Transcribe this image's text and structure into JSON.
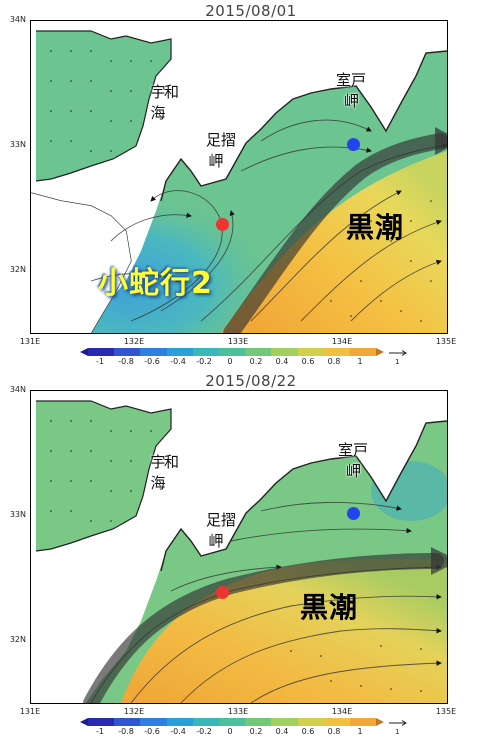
{
  "panels": [
    {
      "title": "2015/08/01",
      "current_label": "黒潮",
      "meander_label": "小蛇行2"
    },
    {
      "title": "2015/08/22",
      "current_label": "黒潮",
      "meander_label": ""
    }
  ],
  "places": {
    "uwa_sea": [
      "宇",
      "和",
      "海"
    ],
    "cape_ashizuri": [
      "足",
      "摺",
      "岬"
    ],
    "cape_muroto": [
      "室",
      "戸",
      "岬"
    ]
  },
  "axes": {
    "lon_ticks": [
      "131E",
      "132E",
      "133E",
      "134E",
      "135E"
    ],
    "lat_ticks": [
      "34N",
      "33N",
      "32N"
    ],
    "lon_range": [
      131,
      135
    ],
    "lat_range": [
      31.5,
      34
    ]
  },
  "colorbar": {
    "labels": [
      "-1",
      "-0.8",
      "-0.6",
      "-0.4",
      "-0.2",
      "0",
      "0.2",
      "0.4",
      "0.6",
      "0.8",
      "1"
    ],
    "colors": [
      "#2a2ab0",
      "#2f55d0",
      "#2f7fe0",
      "#2aa0d8",
      "#38b8b8",
      "#4cc09a",
      "#70c878",
      "#a2d060",
      "#d0d04c",
      "#f0c040",
      "#f0a838",
      "#e08a28"
    ],
    "reference_vector_label": "1"
  },
  "stations": [
    {
      "name": "red-station",
      "color": "#ee3333"
    },
    {
      "name": "blue-station",
      "color": "#2244ee"
    }
  ]
}
